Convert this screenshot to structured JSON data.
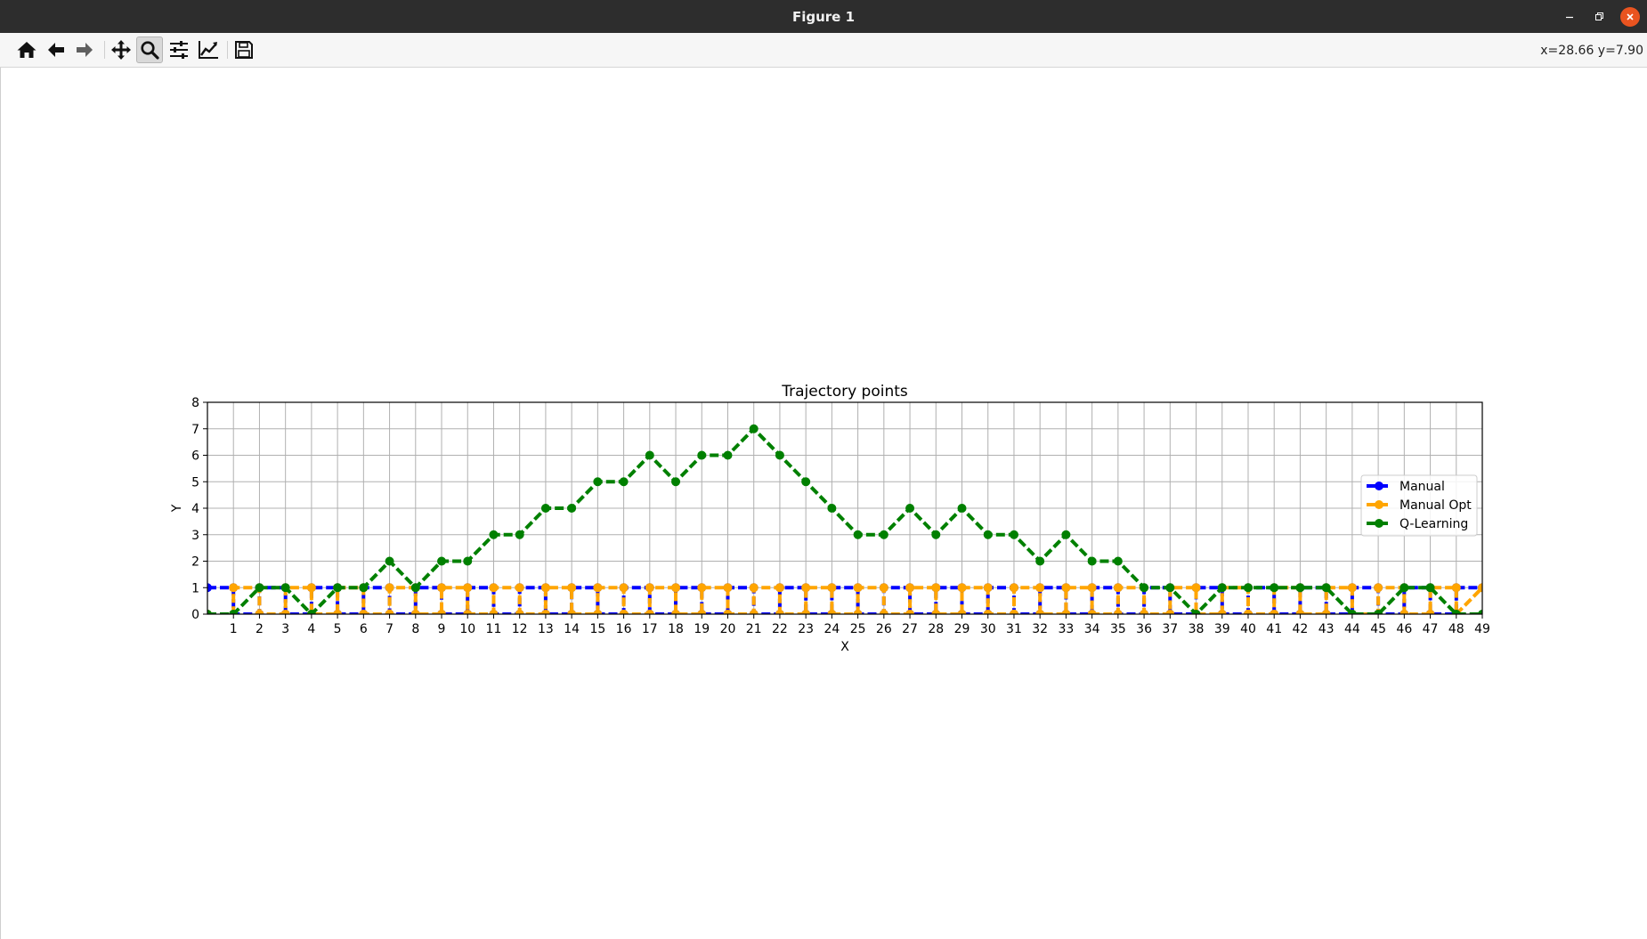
{
  "window": {
    "title": "Figure 1",
    "minimize_icon": "minimize-icon",
    "maximize_icon": "restore-icon",
    "close_icon": "close-icon"
  },
  "toolbar": {
    "buttons": [
      {
        "icon": "home-icon",
        "tooltip": "Reset original view"
      },
      {
        "icon": "arrow-left-icon",
        "tooltip": "Back"
      },
      {
        "icon": "arrow-right-icon",
        "tooltip": "Forward"
      },
      {
        "icon": "move-icon",
        "tooltip": "Pan"
      },
      {
        "icon": "zoom-icon",
        "tooltip": "Zoom",
        "active": true
      },
      {
        "icon": "sliders-icon",
        "tooltip": "Configure subplots"
      },
      {
        "icon": "line-chart-icon",
        "tooltip": "Edit axis"
      },
      {
        "icon": "save-icon",
        "tooltip": "Save the figure"
      }
    ],
    "coords": "x=28.66 y=7.90"
  },
  "chart_data": {
    "type": "line",
    "title": "Trajectory points",
    "xlabel": "X",
    "ylabel": "Y",
    "xlim": [
      0,
      49
    ],
    "ylim": [
      0,
      8
    ],
    "xticks": [
      1,
      2,
      3,
      4,
      5,
      6,
      7,
      8,
      9,
      10,
      11,
      12,
      13,
      14,
      15,
      16,
      17,
      18,
      19,
      20,
      21,
      22,
      23,
      24,
      25,
      26,
      27,
      28,
      29,
      30,
      31,
      32,
      33,
      34,
      35,
      36,
      37,
      38,
      39,
      40,
      41,
      42,
      43,
      44,
      45,
      46,
      47,
      48,
      49
    ],
    "yticks": [
      0,
      1,
      2,
      3,
      4,
      5,
      6,
      7,
      8
    ],
    "grid": true,
    "legend_position": "top-right",
    "series": [
      {
        "name": "Manual",
        "color": "#0000ff",
        "style": "dashed-dot-markers",
        "x": [
          0,
          1,
          1,
          2,
          2,
          3,
          3,
          4,
          4,
          5,
          5,
          6,
          6,
          7,
          7,
          8,
          8,
          9,
          9,
          10,
          10,
          11,
          11,
          12,
          12,
          13,
          13,
          14,
          14,
          15,
          15,
          16,
          16,
          17,
          17,
          18,
          18,
          19,
          19,
          20,
          20,
          21,
          21,
          22,
          22,
          23,
          23,
          24,
          24,
          25,
          25,
          26,
          26,
          27,
          27,
          28,
          28,
          29,
          29,
          30,
          30,
          31,
          31,
          32,
          32,
          33,
          33,
          34,
          34,
          35,
          35,
          36,
          36,
          37,
          37,
          38,
          38,
          39,
          39,
          40,
          40,
          41,
          41,
          42,
          42,
          43,
          43,
          44,
          44,
          45,
          45,
          46,
          46,
          47,
          47,
          48,
          48,
          49
        ],
        "y": [
          1,
          1,
          0,
          0,
          1,
          1,
          0,
          0,
          1,
          1,
          0,
          0,
          1,
          1,
          0,
          0,
          1,
          1,
          0,
          0,
          1,
          1,
          0,
          0,
          1,
          1,
          0,
          0,
          1,
          1,
          0,
          0,
          1,
          1,
          0,
          0,
          1,
          1,
          0,
          0,
          1,
          1,
          0,
          0,
          1,
          1,
          0,
          0,
          1,
          1,
          0,
          0,
          1,
          1,
          0,
          0,
          1,
          1,
          0,
          0,
          1,
          1,
          0,
          0,
          1,
          1,
          0,
          0,
          1,
          1,
          0,
          0,
          1,
          1,
          0,
          0,
          1,
          1,
          0,
          0,
          1,
          1,
          0,
          0,
          1,
          1,
          0,
          0,
          1,
          1,
          0,
          0,
          1,
          1,
          0,
          0,
          1,
          1
        ]
      },
      {
        "name": "Manual Opt",
        "color": "#ffa500",
        "style": "dashed-dot-markers",
        "x": [
          0,
          1,
          1,
          2,
          2,
          3,
          3,
          4,
          4,
          5,
          5,
          6,
          6,
          7,
          7,
          8,
          8,
          9,
          9,
          10,
          10,
          11,
          11,
          12,
          12,
          13,
          13,
          14,
          14,
          15,
          15,
          16,
          16,
          17,
          17,
          18,
          18,
          19,
          19,
          20,
          20,
          21,
          21,
          22,
          22,
          23,
          23,
          24,
          24,
          25,
          25,
          26,
          26,
          27,
          27,
          28,
          28,
          29,
          29,
          30,
          30,
          31,
          31,
          32,
          32,
          33,
          33,
          34,
          34,
          35,
          35,
          36,
          36,
          37,
          37,
          38,
          38,
          39,
          39,
          40,
          40,
          41,
          41,
          42,
          42,
          43,
          43,
          44,
          44,
          45,
          45,
          46,
          46,
          47,
          47,
          48,
          48,
          49
        ],
        "y": [
          0,
          0,
          1,
          1,
          0,
          0,
          1,
          1,
          0,
          0,
          1,
          1,
          0,
          0,
          1,
          1,
          0,
          0,
          1,
          1,
          0,
          0,
          1,
          1,
          0,
          0,
          1,
          1,
          0,
          0,
          1,
          1,
          0,
          0,
          1,
          1,
          0,
          0,
          1,
          1,
          0,
          0,
          1,
          1,
          0,
          0,
          1,
          1,
          0,
          0,
          1,
          1,
          0,
          0,
          1,
          1,
          0,
          0,
          1,
          1,
          0,
          0,
          1,
          1,
          0,
          0,
          1,
          1,
          0,
          0,
          1,
          1,
          0,
          0,
          1,
          1,
          0,
          0,
          1,
          1,
          0,
          0,
          1,
          1,
          0,
          0,
          1,
          1,
          0,
          0,
          1,
          1,
          0,
          0,
          1,
          1,
          0,
          1
        ]
      },
      {
        "name": "Q-Learning",
        "color": "#008000",
        "style": "dashed-dot-markers",
        "x": [
          0,
          1,
          2,
          3,
          4,
          5,
          6,
          7,
          8,
          9,
          10,
          11,
          12,
          13,
          14,
          15,
          16,
          17,
          18,
          19,
          20,
          21,
          22,
          23,
          24,
          25,
          26,
          27,
          28,
          29,
          30,
          31,
          32,
          33,
          34,
          35,
          36,
          37,
          38,
          39,
          40,
          41,
          42,
          43,
          44,
          45,
          46,
          47,
          48,
          49
        ],
        "y": [
          0,
          0,
          1,
          1,
          0,
          1,
          1,
          2,
          1,
          2,
          2,
          3,
          3,
          4,
          4,
          5,
          5,
          6,
          5,
          6,
          6,
          7,
          6,
          5,
          4,
          3,
          3,
          4,
          3,
          4,
          3,
          3,
          2,
          3,
          2,
          2,
          1,
          1,
          0,
          1,
          1,
          1,
          1,
          1,
          0,
          0,
          1,
          1,
          0,
          0
        ]
      }
    ]
  }
}
